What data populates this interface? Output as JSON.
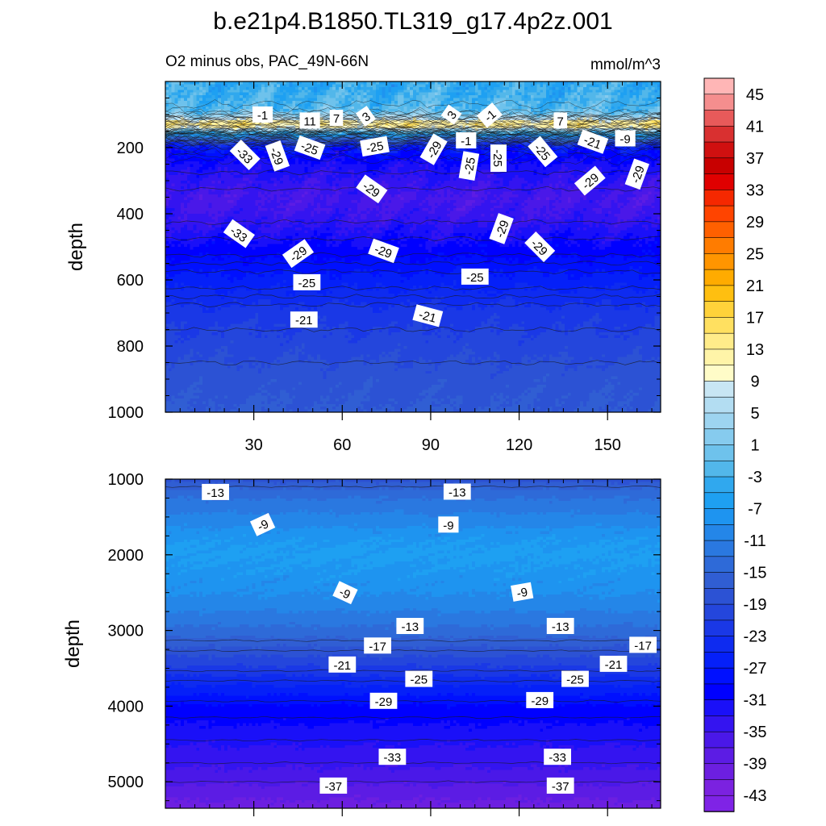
{
  "chart_data": [
    {
      "type": "heatmap",
      "panel": "upper",
      "title": "b.e21p4.B1850.TL319_g17.4p2z.001",
      "subtitle_left": "O2 minus obs, PAC_49N-66N",
      "units": "mmol/m^3",
      "ylabel": "depth",
      "ylim": [
        1000,
        0
      ],
      "xlim": [
        0,
        168
      ],
      "x_ticks": [
        30,
        60,
        90,
        120,
        150
      ],
      "x_tick_labels": [
        "30",
        "60",
        "90",
        "120",
        "150"
      ],
      "y_ticks": [
        200,
        400,
        600,
        800,
        1000
      ],
      "y_tick_labels": [
        "200",
        "400",
        "600",
        "800",
        "1000"
      ],
      "profile": {
        "depth": [
          0,
          50,
          90,
          110,
          125,
          140,
          155,
          175,
          200,
          250,
          300,
          350,
          400,
          450,
          500,
          600,
          700,
          800,
          900,
          1000
        ],
        "value": [
          -4,
          -3,
          -1,
          5,
          14,
          10,
          -3,
          -15,
          -26,
          -30,
          -32,
          -34,
          -33,
          -31,
          -29,
          -25,
          -21,
          -19,
          -17,
          -16
        ]
      },
      "contour_labels": [
        {
          "text": "-1",
          "x": 33,
          "y": 100,
          "rot": 0
        },
        {
          "text": "11",
          "x": 49,
          "y": 118,
          "rot": 0
        },
        {
          "text": "7",
          "x": 58,
          "y": 110,
          "rot": 0
        },
        {
          "text": "3",
          "x": 68,
          "y": 105,
          "rot": -35
        },
        {
          "text": "3",
          "x": 97,
          "y": 100,
          "rot": -55
        },
        {
          "text": "-1",
          "x": 110,
          "y": 102,
          "rot": -40
        },
        {
          "text": "7",
          "x": 134,
          "y": 118,
          "rot": 0
        },
        {
          "text": "-1",
          "x": 102,
          "y": 178,
          "rot": 0
        },
        {
          "text": "-9",
          "x": 156,
          "y": 172,
          "rot": 0
        },
        {
          "text": "-21",
          "x": 145,
          "y": 182,
          "rot": 20
        },
        {
          "text": "-33",
          "x": 27,
          "y": 222,
          "rot": 45
        },
        {
          "text": "-29",
          "x": 38,
          "y": 225,
          "rot": 70
        },
        {
          "text": "-25",
          "x": 49,
          "y": 200,
          "rot": 20
        },
        {
          "text": "-25",
          "x": 71,
          "y": 196,
          "rot": -10
        },
        {
          "text": "-29",
          "x": 91,
          "y": 205,
          "rot": -60
        },
        {
          "text": "-25",
          "x": 103,
          "y": 255,
          "rot": -80
        },
        {
          "text": "-25",
          "x": 113,
          "y": 232,
          "rot": 90
        },
        {
          "text": "-25",
          "x": 128,
          "y": 212,
          "rot": 50
        },
        {
          "text": "-29",
          "x": 144,
          "y": 300,
          "rot": -40
        },
        {
          "text": "-29",
          "x": 160,
          "y": 280,
          "rot": -70
        },
        {
          "text": "-29",
          "x": 70,
          "y": 325,
          "rot": 35
        },
        {
          "text": "-33",
          "x": 25,
          "y": 460,
          "rot": 35
        },
        {
          "text": "-29",
          "x": 45,
          "y": 520,
          "rot": -35
        },
        {
          "text": "-29",
          "x": 74,
          "y": 512,
          "rot": 20
        },
        {
          "text": "-29",
          "x": 114,
          "y": 445,
          "rot": -70
        },
        {
          "text": "-29",
          "x": 127,
          "y": 500,
          "rot": 45
        },
        {
          "text": "-25",
          "x": 48,
          "y": 607,
          "rot": 0
        },
        {
          "text": "-25",
          "x": 105,
          "y": 590,
          "rot": 0
        },
        {
          "text": "-21",
          "x": 47,
          "y": 720,
          "rot": 0
        },
        {
          "text": "-21",
          "x": 89,
          "y": 708,
          "rot": 15
        }
      ]
    },
    {
      "type": "heatmap",
      "panel": "lower",
      "ylabel": "depth",
      "ylim": [
        5350,
        1000
      ],
      "xlim": [
        0,
        168
      ],
      "y_ticks": [
        1000,
        2000,
        3000,
        4000,
        5000
      ],
      "y_tick_labels": [
        "1000",
        "2000",
        "3000",
        "4000",
        "5000"
      ],
      "profile": {
        "depth": [
          1000,
          1200,
          1400,
          1600,
          1800,
          2000,
          2200,
          2400,
          2600,
          2800,
          3000,
          3200,
          3400,
          3600,
          3800,
          4000,
          4300,
          4600,
          4900,
          5200,
          5350
        ],
        "value": [
          -17,
          -13,
          -11,
          -9,
          -7,
          -6,
          -7,
          -8,
          -9,
          -11,
          -13,
          -16,
          -19,
          -22,
          -25,
          -28,
          -30,
          -32,
          -34,
          -37,
          -38
        ]
      },
      "contour_labels": [
        {
          "text": "-13",
          "x": 17,
          "y": 1170,
          "rot": 0
        },
        {
          "text": "-13",
          "x": 99,
          "y": 1165,
          "rot": 0
        },
        {
          "text": "-9",
          "x": 33,
          "y": 1600,
          "rot": -25
        },
        {
          "text": "-9",
          "x": 96,
          "y": 1600,
          "rot": 0
        },
        {
          "text": "-9",
          "x": 61,
          "y": 2500,
          "rot": 25
        },
        {
          "text": "-9",
          "x": 121,
          "y": 2490,
          "rot": -10
        },
        {
          "text": "-13",
          "x": 83,
          "y": 2940,
          "rot": 0
        },
        {
          "text": "-13",
          "x": 134,
          "y": 2940,
          "rot": 0
        },
        {
          "text": "-17",
          "x": 72,
          "y": 3200,
          "rot": 0
        },
        {
          "text": "-17",
          "x": 162,
          "y": 3190,
          "rot": 0
        },
        {
          "text": "-21",
          "x": 60,
          "y": 3450,
          "rot": 0
        },
        {
          "text": "-21",
          "x": 152,
          "y": 3440,
          "rot": 0
        },
        {
          "text": "-25",
          "x": 86,
          "y": 3640,
          "rot": 0
        },
        {
          "text": "-25",
          "x": 139,
          "y": 3640,
          "rot": 0
        },
        {
          "text": "-29",
          "x": 74,
          "y": 3930,
          "rot": 0
        },
        {
          "text": "-29",
          "x": 127,
          "y": 3920,
          "rot": 0
        },
        {
          "text": "-33",
          "x": 77,
          "y": 4670,
          "rot": 0
        },
        {
          "text": "-33",
          "x": 133,
          "y": 4670,
          "rot": 0
        },
        {
          "text": "-37",
          "x": 57,
          "y": 5050,
          "rot": 0
        },
        {
          "text": "-37",
          "x": 134,
          "y": 5050,
          "rot": 0
        }
      ]
    }
  ],
  "colorbar": {
    "levels": [
      -43,
      -39,
      -35,
      -31,
      -27,
      -23,
      -19,
      -15,
      -11,
      -7,
      -3,
      1,
      5,
      9,
      13,
      17,
      21,
      25,
      29,
      33,
      37,
      41,
      45
    ],
    "labels": [
      "45",
      "41",
      "37",
      "33",
      "29",
      "25",
      "21",
      "17",
      "13",
      "9",
      "5",
      "1",
      "-3",
      "-7",
      "-11",
      "-15",
      "-19",
      "-23",
      "-27",
      "-31",
      "-35",
      "-39",
      "-43"
    ],
    "colors_top_to_bottom": [
      "#ffb6b6",
      "#f58e8e",
      "#e85a5a",
      "#d93030",
      "#d01010",
      "#c80000",
      "#e00000",
      "#f52800",
      "#ff4400",
      "#ff6000",
      "#ff7c00",
      "#ff9500",
      "#ffab00",
      "#ffbf10",
      "#ffd23a",
      "#ffe060",
      "#ffec8a",
      "#fff4a8",
      "#fffcc8",
      "#c8e6f4",
      "#b3ddf2",
      "#9dd4f0",
      "#86cbee",
      "#6ec2ec",
      "#52b7ea",
      "#30a8ee",
      "#1ea0f2",
      "#1e94f0",
      "#2486e8",
      "#2a78e0",
      "#2e6ad8",
      "#305ed3",
      "#2c52d4",
      "#2446dc",
      "#1a38e6",
      "#0e2bf0",
      "#0520f8",
      "#0010ff",
      "#0000ff",
      "#1a10f8",
      "#3414f0",
      "#4a18e8",
      "#5c1ce4",
      "#6c1fe0",
      "#7b22e0",
      "#7f23e6"
    ]
  }
}
